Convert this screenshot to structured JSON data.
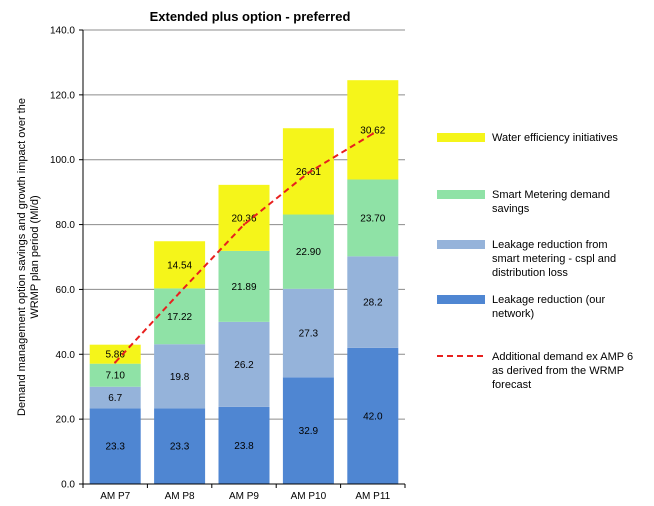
{
  "chart_data": {
    "type": "bar",
    "stacked": true,
    "title": "Extended plus option - preferred",
    "ylabel_lines": [
      "Demand management option savings and growth impact over the",
      "WRMP plan period (Ml/d)"
    ],
    "xlabel": "",
    "ylim": [
      0,
      140
    ],
    "y_ticks": [
      "0.0",
      "20.0",
      "40.0",
      "60.0",
      "80.0",
      "100.0",
      "120.0",
      "140.0"
    ],
    "grid": true,
    "legend_position": "right",
    "categories": [
      "AM P7",
      "AM P8",
      "AM P9",
      "AM P10",
      "AM P11"
    ],
    "series": [
      {
        "name_lines": [
          "Leakage reduction (our",
          "network)"
        ],
        "color": "#4f86d2",
        "values": [
          23.3,
          23.3,
          23.8,
          32.9,
          42.0
        ],
        "labels": [
          "23.3",
          "23.3",
          "23.8",
          "32.9",
          "42.0"
        ]
      },
      {
        "name_lines": [
          "Leakage reduction from",
          "smart metering - cspl and",
          "distribution loss"
        ],
        "color": "#95b3da",
        "values": [
          6.7,
          19.8,
          26.2,
          27.3,
          28.2
        ],
        "labels": [
          "6.7",
          "19.8",
          "26.2",
          "27.3",
          "28.2"
        ]
      },
      {
        "name_lines": [
          "Smart Metering demand",
          "savings"
        ],
        "color": "#8fe2a6",
        "values": [
          7.1,
          17.22,
          21.89,
          22.9,
          23.7
        ],
        "labels": [
          "7.10",
          "17.22",
          "21.89",
          "22.90",
          "23.70"
        ]
      },
      {
        "name_lines": [
          "Water efficiency initiatives"
        ],
        "color": "#f5f51a",
        "values": [
          5.86,
          14.54,
          20.36,
          26.61,
          30.62
        ],
        "labels": [
          "5.86",
          "14.54",
          "20.36",
          "26.61",
          "30.62"
        ]
      }
    ],
    "line_series": {
      "name_lines": [
        "Additional demand ex AMP 6",
        "as derived from the WRMP",
        "forecast"
      ],
      "color": "#e8201e",
      "style": "dashed",
      "values": [
        37.5,
        59.0,
        80.0,
        96.0,
        108.0
      ]
    }
  }
}
